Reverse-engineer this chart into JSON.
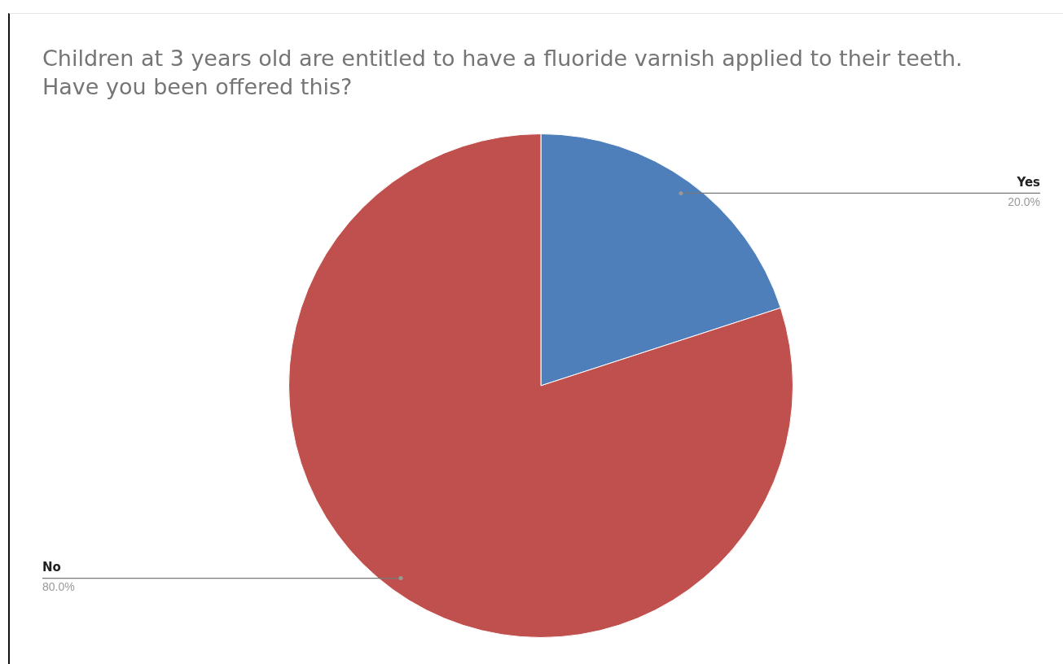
{
  "chart_data": {
    "type": "pie",
    "title": "Children at 3 years old are entitled to have a fluoride varnish applied to their teeth. Have you been offered this?",
    "categories": [
      "Yes",
      "No"
    ],
    "values": [
      20,
      80
    ],
    "colors": [
      "#4e7fbb",
      "#c0504d"
    ],
    "value_labels": [
      "20.0%",
      "80.0%"
    ],
    "legend": false
  }
}
